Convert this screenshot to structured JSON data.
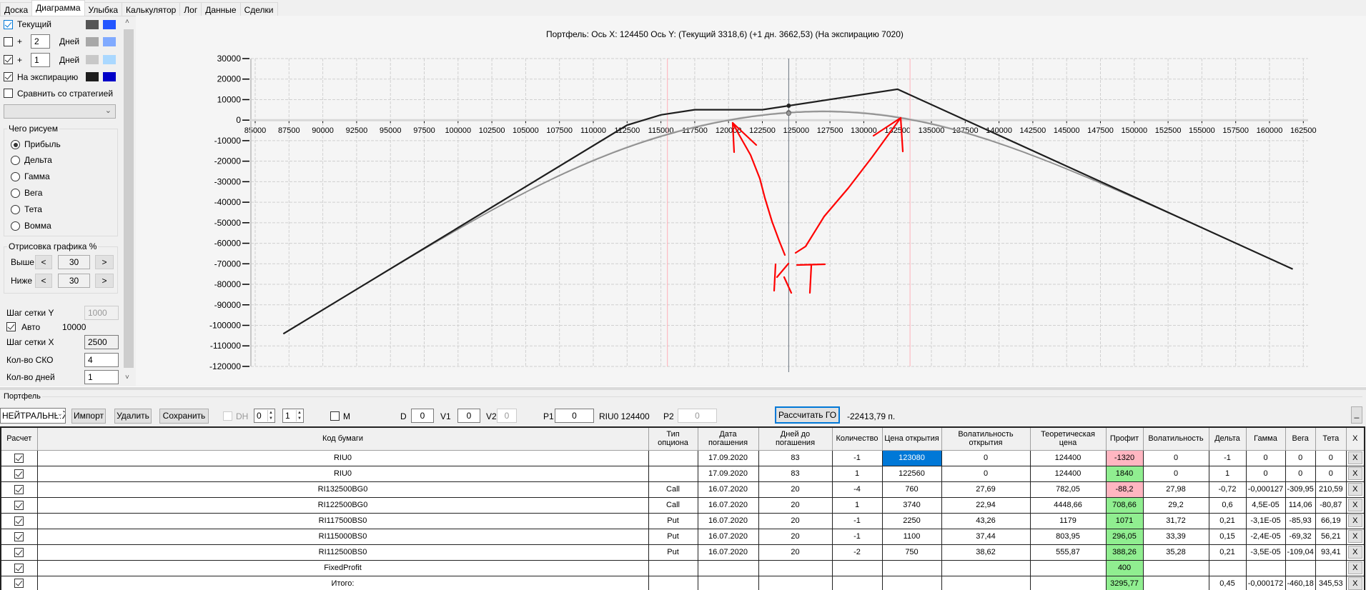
{
  "tabs": [
    {
      "label": "Доска"
    },
    {
      "label": "Диаграмма",
      "active": true
    },
    {
      "label": "Улыбка"
    },
    {
      "label": "Калькулятор"
    },
    {
      "label": "Лог"
    },
    {
      "label": "Данные"
    },
    {
      "label": "Сделки"
    }
  ],
  "left_panel": {
    "series_rows": [
      {
        "checked": true,
        "label": "Текущий",
        "color_line": "#555555",
        "color_alt": "#2255ff"
      },
      {
        "checked": false,
        "plus": "+",
        "days": "2",
        "days_label": "Дней",
        "color_line": "#a8a8a8",
        "color_alt": "#80aaff"
      },
      {
        "checked": true,
        "plus": "+",
        "days": "1",
        "days_label": "Дней",
        "color_line": "#c8c8c8",
        "color_alt": "#aad8ff"
      },
      {
        "checked": true,
        "label": "На экспирацию",
        "color_line": "#1e1e1e",
        "color_alt": "#0000c8"
      }
    ],
    "compare": {
      "checked": false,
      "label": "Сравнить со стратегией",
      "selected": ""
    },
    "draw_group": {
      "title": "Чего рисуем",
      "options": [
        "Прибыль",
        "Дельта",
        "Гамма",
        "Вега",
        "Тета",
        "Вомма"
      ],
      "selected": 0
    },
    "render_group": {
      "title": "Отрисовка графика %",
      "above_label": "Выше",
      "above_value": "30",
      "below_label": "Ниже",
      "below_value": "30",
      "dec": "<",
      "inc": ">"
    },
    "grid_y": {
      "label": "Шаг сетки Y",
      "value": "1000"
    },
    "auto": {
      "checked": true,
      "label": "Авто",
      "value": "10000"
    },
    "grid_x": {
      "label": "Шаг сетки X",
      "value": "2500"
    },
    "sd_count": {
      "label": "Кол-во СКО",
      "value": "4"
    },
    "days_count": {
      "label": "Кол-во дней",
      "value": "1"
    }
  },
  "chart": {
    "title": "Портфель: Ось X: 124450 Ось Y:  (Текущий 3318,6)  (+1 дн. 3662,53)  (На экспирацию 7020)"
  },
  "chart_data": {
    "type": "line",
    "xlim": [
      85000,
      162500
    ],
    "x_tick_step": 2500,
    "ylim": [
      -120000,
      30000
    ],
    "y_tick_step": 10000,
    "grid": true,
    "cursor_x": 124450,
    "sd_lines": [
      115480,
      133420
    ],
    "sd_line_color": "#ffb0b8",
    "series": [
      {
        "name": "На экспирацию",
        "color": "#1e1e1e",
        "points": [
          [
            87080,
            -104110
          ],
          [
            112500,
            -2430
          ],
          [
            115000,
            2570
          ],
          [
            117500,
            5070
          ],
          [
            122500,
            5070
          ],
          [
            132500,
            15070
          ],
          [
            161720,
            -72590
          ]
        ],
        "cursor_value": 7020
      },
      {
        "name": "Текущий",
        "color": "#8a8a8a",
        "model": "black",
        "days_shift": 0,
        "range": [
          87080,
          161720
        ],
        "cursor_value": 3318.6
      },
      {
        "name": "+1 дн.",
        "color": "#b4b4b4",
        "model": "black",
        "days_shift": 1,
        "range": [
          87080,
          161720
        ],
        "cursor_value": 3662.53
      }
    ]
  },
  "annotation": {
    "text": "КТ",
    "color": "#ff0000"
  },
  "portfolio": {
    "title": "Портфель",
    "strategy": "НЕЙТРАЛЬНЫЙ",
    "import": "Импорт",
    "delete": "Удалить",
    "save": "Сохранить",
    "dh_label": "DH",
    "spin1": "0",
    "spin2": "1",
    "m_label": "M",
    "d_label": "D",
    "d_value": "0",
    "v1_label": "V1",
    "v1_value": "0",
    "v2_label": "V2",
    "v2_value": "0",
    "p1_label": "P1",
    "p1_value": "0",
    "underlying": "RIU0 124400",
    "p2_label": "P2",
    "p2_value": "0",
    "calc_go": "Рассчитать ГО",
    "go_value": "-22413,79 п.",
    "minimize": "_"
  },
  "table": {
    "columns": [
      "Расчет",
      "Код бумаги",
      "Тип опциона",
      "Дата погашения",
      "Дней до погашения",
      "Количество",
      "Цена открытия",
      "Волатильность открытия",
      "Теоретическая цена",
      "Профит",
      "Волатильность",
      "Дельта",
      "Гамма",
      "Вега",
      "Тета",
      "X"
    ],
    "rows": [
      {
        "calc": true,
        "cells": [
          "RIU0",
          "",
          "17.09.2020",
          "83",
          "-1",
          "123080",
          "0",
          "124400",
          "-1320",
          "0",
          "-1",
          "0",
          "0",
          "0"
        ],
        "selected_col": 5
      },
      {
        "calc": true,
        "cells": [
          "RIU0",
          "",
          "17.09.2020",
          "83",
          "1",
          "122560",
          "0",
          "124400",
          "1840",
          "0",
          "1",
          "0",
          "0",
          "0"
        ]
      },
      {
        "calc": true,
        "cells": [
          "RI132500BG0",
          "Call",
          "16.07.2020",
          "20",
          "-4",
          "760",
          "27,69",
          "782,05",
          "-88,2",
          "27,98",
          "-0,72",
          "-0,000127",
          "-309,95",
          "210,59"
        ]
      },
      {
        "calc": true,
        "cells": [
          "RI122500BG0",
          "Call",
          "16.07.2020",
          "20",
          "1",
          "3740",
          "22,94",
          "4448,66",
          "708,66",
          "29,2",
          "0,6",
          "4,5E-05",
          "114,06",
          "-80,87"
        ]
      },
      {
        "calc": true,
        "cells": [
          "RI117500BS0",
          "Put",
          "16.07.2020",
          "20",
          "-1",
          "2250",
          "43,26",
          "1179",
          "1071",
          "31,72",
          "0,21",
          "-3,1E-05",
          "-85,93",
          "66,19"
        ]
      },
      {
        "calc": true,
        "cells": [
          "RI115000BS0",
          "Put",
          "16.07.2020",
          "20",
          "-1",
          "1100",
          "37,44",
          "803,95",
          "296,05",
          "33,39",
          "0,15",
          "-2,4E-05",
          "-69,32",
          "56,21"
        ]
      },
      {
        "calc": true,
        "cells": [
          "RI112500BS0",
          "Put",
          "16.07.2020",
          "20",
          "-2",
          "750",
          "38,62",
          "555,87",
          "388,26",
          "35,28",
          "0,21",
          "-3,5E-05",
          "-109,04",
          "93,41"
        ]
      },
      {
        "calc": true,
        "cells": [
          "FixedProfit",
          "",
          "",
          "",
          "",
          "",
          "",
          "",
          "400",
          "",
          "",
          "",
          "",
          ""
        ]
      },
      {
        "calc": true,
        "cells": [
          "Итого:",
          "",
          "",
          "",
          "",
          "",
          "",
          "",
          "3295,77",
          "",
          "0,45",
          "-0,000172",
          "-460,18",
          "345,53"
        ]
      }
    ],
    "x_label": "X"
  }
}
